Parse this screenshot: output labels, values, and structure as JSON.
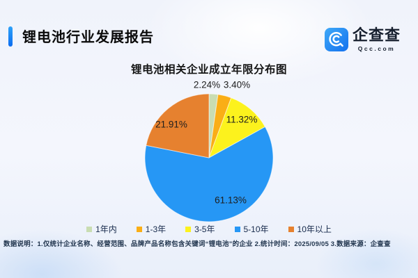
{
  "header": {
    "title": "锂电池行业发展报告",
    "logo": {
      "name": "企查查",
      "domain": "Qcc.com"
    }
  },
  "chart_data": {
    "type": "pie",
    "title": "锂电池相关企业成立年限分布图",
    "categories": [
      "1年内",
      "1-3年",
      "3-5年",
      "5-10年",
      "10年以上"
    ],
    "values": [
      2.24,
      3.4,
      11.32,
      61.13,
      21.91
    ],
    "percent_labels": [
      "2.24%",
      "3.40%",
      "11.32%",
      "61.13%",
      "21.91%"
    ],
    "colors": [
      "#c9ddb2",
      "#faae16",
      "#fcf21d",
      "#2697f5",
      "#e6812f"
    ],
    "start_angle": "top",
    "direction": "clockwise",
    "legend_position": "bottom",
    "accent_color": "#1677f0"
  },
  "footer": {
    "note": "数据说明：1.仅统计企业名称、经营范围、品牌产品名称包含关键词“锂电池”的企业  2.统计时间：2025/09/05  3.数据来源：企查查"
  }
}
